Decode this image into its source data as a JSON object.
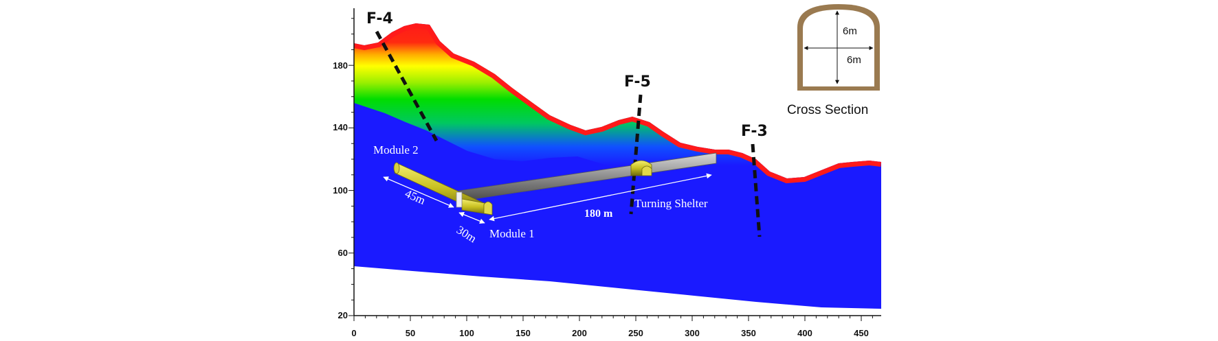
{
  "axes": {
    "x_ticks": [
      "0",
      "50",
      "100",
      "150",
      "200",
      "250",
      "300",
      "350",
      "400",
      "450"
    ],
    "y_ticks": [
      "20",
      "60",
      "100",
      "140",
      "180"
    ]
  },
  "faults": {
    "f4": "F-4",
    "f5": "F-5",
    "f3": "F-3"
  },
  "tunnel": {
    "module2": "Module 2",
    "module1": "Module 1",
    "turning_shelter": "Turning Shelter",
    "len_45": "45m",
    "len_30": "30m",
    "len_180": "180 m"
  },
  "cross_section": {
    "caption": "Cross Section",
    "height": "6m",
    "width": "6m"
  },
  "colors": {
    "red": "#ff1a1a",
    "yellow": "#ffff00",
    "green": "#00dd00",
    "blue": "#1a1aff",
    "tunnel_yellow": "#c8c020",
    "tunnel_gray": "#8c8c8c",
    "rock_brown": "#9a7a50"
  }
}
